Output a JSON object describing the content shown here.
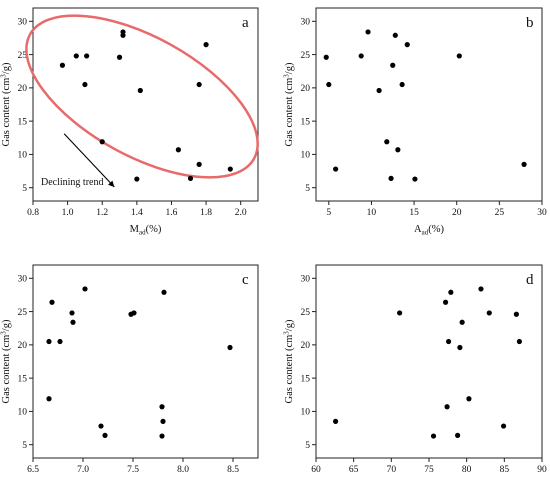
{
  "chart_data": [
    {
      "type": "scatter",
      "panel_label": "a",
      "xlabel": {
        "main": "M",
        "sub": "ad",
        "suffix": "(%)"
      },
      "ylabel": {
        "main": "Gas content (cm",
        "sup": "3",
        "suffix": "/g)"
      },
      "xlim": [
        0.8,
        2.1
      ],
      "ylim": [
        3,
        32
      ],
      "xticks": [
        0.8,
        1.0,
        1.2,
        1.4,
        1.6,
        1.8,
        2.0
      ],
      "xtick_labels": [
        "0.8",
        "1.0",
        "1.2",
        "1.4",
        "1.6",
        "1.8",
        "2.0"
      ],
      "yticks": [
        5,
        10,
        15,
        20,
        25,
        30
      ],
      "ytick_labels": [
        "5",
        "10",
        "15",
        "20",
        "25",
        "30"
      ],
      "points": [
        [
          0.97,
          23.4
        ],
        [
          1.05,
          24.8
        ],
        [
          1.1,
          20.5
        ],
        [
          1.11,
          24.8
        ],
        [
          1.2,
          11.9
        ],
        [
          1.3,
          24.6
        ],
        [
          1.32,
          27.9
        ],
        [
          1.32,
          28.4
        ],
        [
          1.4,
          6.3
        ],
        [
          1.42,
          19.6
        ],
        [
          1.64,
          10.7
        ],
        [
          1.71,
          6.4
        ],
        [
          1.76,
          20.5
        ],
        [
          1.76,
          8.5
        ],
        [
          1.8,
          26.5
        ],
        [
          1.94,
          7.8
        ]
      ],
      "annotation": {
        "text": "Declining trend",
        "arrow_from": [
          0.98,
          13.1
        ],
        "arrow_to": [
          1.27,
          5.1
        ]
      },
      "ellipse": {
        "color": "#e86a6a",
        "cx": 1.43,
        "cy": 18.7,
        "rx": 0.74,
        "ry": 8.9,
        "angle_deg": 29
      }
    },
    {
      "type": "scatter",
      "panel_label": "b",
      "xlabel": {
        "main": "A",
        "sub": "ad",
        "suffix": "(%)"
      },
      "ylabel": {
        "main": "Gas content (cm",
        "sup": "3",
        "suffix": "/g)"
      },
      "xlim": [
        3.5,
        30
      ],
      "ylim": [
        3,
        32
      ],
      "xticks": [
        5,
        10,
        15,
        20,
        25,
        30
      ],
      "xtick_labels": [
        "5",
        "10",
        "15",
        "20",
        "25",
        "30"
      ],
      "yticks": [
        5,
        10,
        15,
        20,
        25,
        30
      ],
      "ytick_labels": [
        "5",
        "10",
        "15",
        "20",
        "25",
        "30"
      ],
      "points": [
        [
          4.7,
          24.6
        ],
        [
          5.0,
          20.5
        ],
        [
          5.8,
          7.8
        ],
        [
          8.8,
          24.8
        ],
        [
          9.6,
          28.4
        ],
        [
          10.9,
          19.6
        ],
        [
          11.8,
          11.9
        ],
        [
          12.3,
          6.4
        ],
        [
          12.5,
          23.4
        ],
        [
          12.8,
          27.9
        ],
        [
          13.1,
          10.7
        ],
        [
          13.6,
          20.5
        ],
        [
          14.2,
          26.5
        ],
        [
          15.1,
          6.3
        ],
        [
          20.3,
          24.8
        ],
        [
          27.9,
          8.5
        ]
      ]
    },
    {
      "type": "scatter",
      "panel_label": "c",
      "xlabel": {
        "main": "V",
        "sub": "ad",
        "suffix": "(%)"
      },
      "ylabel": {
        "main": "Gas content (cm",
        "sup": "3",
        "suffix": "/g)"
      },
      "xlim": [
        6.5,
        8.75
      ],
      "ylim": [
        3,
        32
      ],
      "xticks": [
        6.5,
        7.0,
        7.5,
        8.0,
        8.5
      ],
      "xtick_labels": [
        "6.5",
        "7.0",
        "7.5",
        "8.0",
        "8.5"
      ],
      "yticks": [
        5,
        10,
        15,
        20,
        25,
        30
      ],
      "ytick_labels": [
        "5",
        "10",
        "15",
        "20",
        "25",
        "30"
      ],
      "points": [
        [
          6.66,
          20.5
        ],
        [
          6.66,
          11.9
        ],
        [
          6.69,
          26.4
        ],
        [
          6.77,
          20.5
        ],
        [
          6.89,
          24.8
        ],
        [
          6.9,
          23.4
        ],
        [
          7.02,
          28.4
        ],
        [
          7.18,
          7.8
        ],
        [
          7.22,
          6.4
        ],
        [
          7.48,
          24.6
        ],
        [
          7.51,
          24.8
        ],
        [
          7.79,
          10.7
        ],
        [
          7.8,
          8.5
        ],
        [
          7.79,
          6.3
        ],
        [
          7.81,
          27.9
        ],
        [
          8.47,
          19.6
        ]
      ]
    },
    {
      "type": "scatter",
      "panel_label": "d",
      "xlabel": {
        "main": "FC",
        "sub": "ad",
        "suffix": "(%)"
      },
      "ylabel": {
        "main": "Gas content (cm",
        "sup": "3",
        "suffix": "/g)"
      },
      "xlim": [
        60,
        90
      ],
      "ylim": [
        3,
        32
      ],
      "xticks": [
        60,
        65,
        70,
        75,
        80,
        85,
        90
      ],
      "xtick_labels": [
        "60",
        "65",
        "70",
        "75",
        "80",
        "85",
        "90"
      ],
      "yticks": [
        5,
        10,
        15,
        20,
        25,
        30
      ],
      "ytick_labels": [
        "5",
        "10",
        "15",
        "20",
        "25",
        "30"
      ],
      "points": [
        [
          62.6,
          8.5
        ],
        [
          71.1,
          24.8
        ],
        [
          75.6,
          6.3
        ],
        [
          77.2,
          26.4
        ],
        [
          77.4,
          10.7
        ],
        [
          77.6,
          20.5
        ],
        [
          77.9,
          27.9
        ],
        [
          78.8,
          6.4
        ],
        [
          79.1,
          19.6
        ],
        [
          79.4,
          23.4
        ],
        [
          80.3,
          11.9
        ],
        [
          81.9,
          28.4
        ],
        [
          83.0,
          24.8
        ],
        [
          84.9,
          7.8
        ],
        [
          86.6,
          24.6
        ],
        [
          87.0,
          20.5
        ]
      ]
    }
  ]
}
